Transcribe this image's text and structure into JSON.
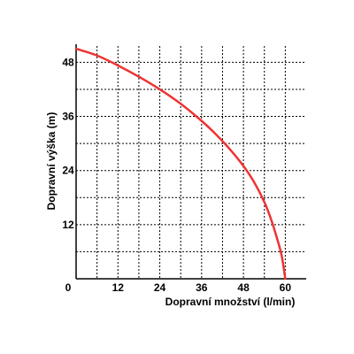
{
  "chart_data": {
    "type": "line",
    "xlabel": "Dopravní množství (l/min)",
    "ylabel": "Dopravní výška (m)",
    "xlim": [
      0,
      66
    ],
    "ylim": [
      0,
      52
    ],
    "x_ticks": [
      0,
      12,
      24,
      36,
      48,
      60
    ],
    "y_ticks": [
      12,
      24,
      36,
      48
    ],
    "grid": true,
    "grid_x_minor_step": 6,
    "grid_y_minor_step": 6,
    "series": [
      {
        "color": "#ee3333",
        "x": [
          0,
          6,
          12,
          18,
          24,
          30,
          36,
          40,
          44,
          48,
          51,
          54,
          56,
          58,
          59,
          60
        ],
        "y": [
          51,
          49.5,
          47.3,
          44.8,
          42,
          38.8,
          35,
          32.1,
          28.8,
          25,
          21.5,
          17,
          13,
          8,
          5,
          0
        ]
      }
    ]
  }
}
